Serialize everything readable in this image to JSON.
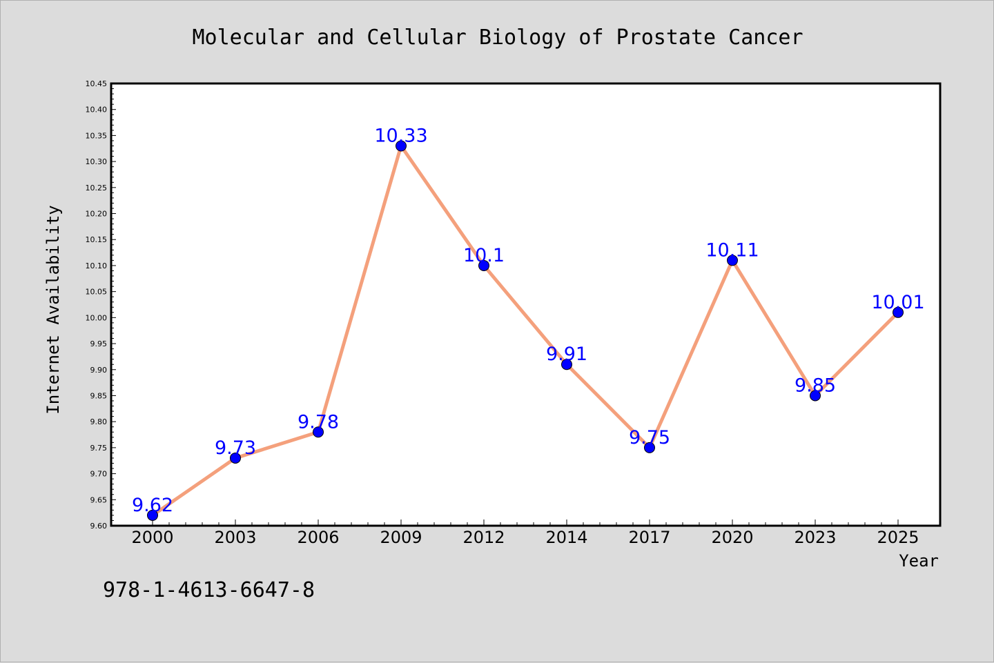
{
  "chart_data": {
    "type": "line",
    "title": "Molecular and Cellular Biology of Prostate Cancer",
    "xlabel": "Year",
    "ylabel": "Internet Availability",
    "categories": [
      "2000",
      "2003",
      "2006",
      "2009",
      "2012",
      "2014",
      "2017",
      "2020",
      "2023",
      "2025"
    ],
    "series": [
      {
        "values": [
          9.62,
          9.73,
          9.78,
          10.33,
          10.1,
          9.91,
          9.75,
          10.11,
          9.85,
          10.01
        ],
        "data_labels": [
          "9.62",
          "9.73",
          "9.78",
          "10.33",
          "10.1",
          "9.91",
          "9.75",
          "10.11",
          "9.85",
          "10.01"
        ]
      }
    ],
    "ylim": [
      9.6,
      10.45
    ],
    "yticks": [
      "9.60",
      "9.65",
      "9.70",
      "9.75",
      "9.80",
      "9.85",
      "9.90",
      "9.95",
      "10.00",
      "10.05",
      "10.10",
      "10.15",
      "10.20",
      "10.25",
      "10.30",
      "10.35",
      "10.40",
      "10.45"
    ],
    "grid": false,
    "colors": {
      "line": "#f4a07c",
      "marker": "#0000ff",
      "data_label": "#0000ff",
      "background": "#dcdcdc",
      "plot_background": "#ffffff"
    }
  },
  "annotation": {
    "isbn": "978-1-4613-6647-8"
  }
}
